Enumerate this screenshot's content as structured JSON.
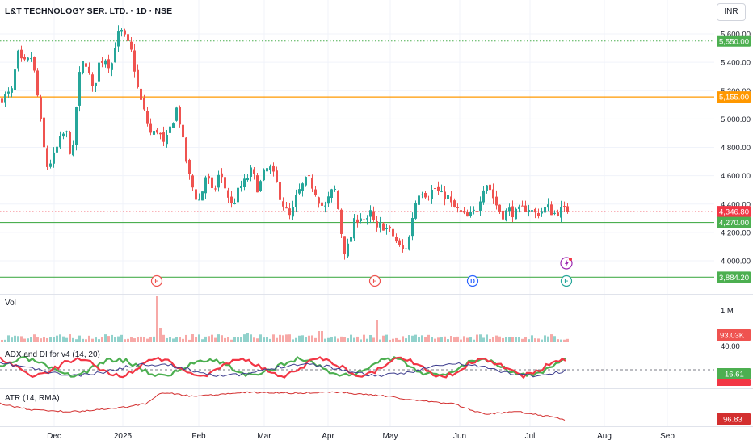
{
  "header": {
    "title": "L&T TECHNOLOGY SER. LTD. · 1D · NSE",
    "currency": "INR"
  },
  "panes": {
    "volume_label": "Vol",
    "adx_label": "ADX and DI for v4 (14, 20)",
    "atr_label": "ATR (14, RMA)"
  },
  "colors": {
    "up": "#26a69a",
    "down": "#ef5350",
    "level_green": "#4caf50",
    "level_orange": "#ff9800",
    "adx_green": "#4caf50",
    "adx_red": "#f23645",
    "adx_navy": "#3f3f8f",
    "atr": "#d32f2f"
  },
  "chart_data": {
    "type": "candlestick",
    "x_axis": [
      "Dec",
      "2025",
      "Feb",
      "Mar",
      "Apr",
      "May",
      "Jun",
      "Jul",
      "Aug",
      "Sep"
    ],
    "price_axis": {
      "ticks": [
        "5,600.00",
        "5,400.00",
        "5,200.00",
        "5,000.00",
        "4,800.00",
        "4,600.00",
        "4,400.00",
        "4,200.00",
        "4,000.00"
      ],
      "range": [
        3890,
        5650
      ]
    },
    "levels": [
      {
        "value": 5550,
        "label": "5,550.00",
        "style": "dotted",
        "color": "#4caf50"
      },
      {
        "value": 5155,
        "label": "5,155.00",
        "style": "solid",
        "color": "#ff9800"
      },
      {
        "value": 4346.8,
        "label": "4,346.80",
        "style": "dotted",
        "color": "#f23645"
      },
      {
        "value": 4270,
        "label": "4,270.00",
        "style": "solid",
        "color": "#4caf50"
      },
      {
        "value": 3884.2,
        "label": "3,884.20",
        "style": "solid",
        "color": "#4caf50"
      }
    ],
    "events": [
      {
        "letter": "E",
        "type": "earnings",
        "color": "#ef5350"
      },
      {
        "letter": "E",
        "type": "earnings",
        "color": "#ef5350"
      },
      {
        "letter": "D",
        "type": "dividend",
        "color": "#2962ff"
      },
      {
        "letter": "E",
        "type": "earnings",
        "color": "#26a69a"
      }
    ],
    "volume": {
      "axis_label": "1 M",
      "last_label": "93.03K"
    },
    "adx": {
      "axis_label": "40.00",
      "last_label": "16.61",
      "threshold": 20
    },
    "atr": {
      "last_label": "96.83"
    }
  }
}
